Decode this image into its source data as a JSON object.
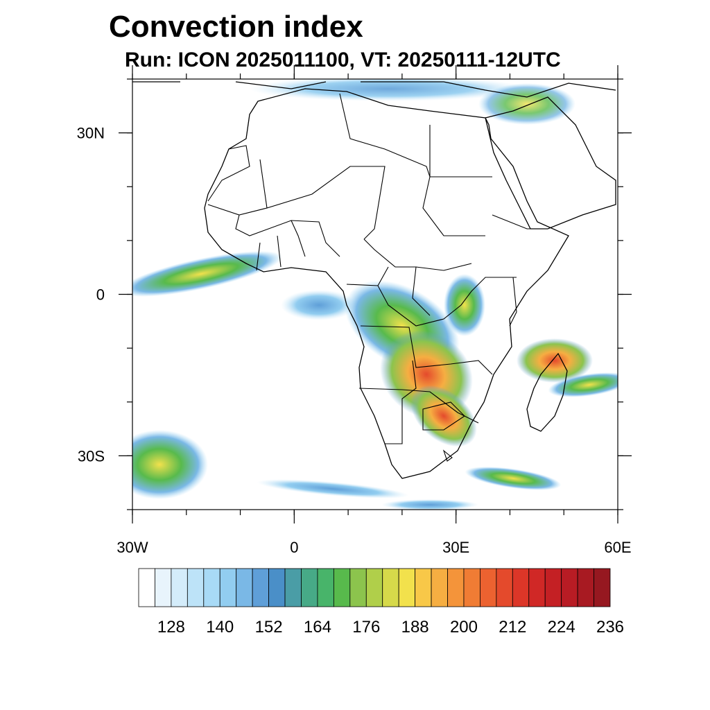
{
  "title": "Convection index",
  "subtitle": "Run: ICON 2025011100,  VT: 20250111-12UTC",
  "map": {
    "lon_range": [
      -30,
      60
    ],
    "lat_range": [
      -40,
      40
    ],
    "lon_ticks": [
      {
        "value": -30,
        "label": "30W"
      },
      {
        "value": 0,
        "label": "0"
      },
      {
        "value": 30,
        "label": "30E"
      },
      {
        "value": 60,
        "label": "60E"
      }
    ],
    "lat_ticks": [
      {
        "value": 30,
        "label": "30N"
      },
      {
        "value": 0,
        "label": "0"
      },
      {
        "value": -30,
        "label": "30S"
      }
    ],
    "minor_lon_step": 10,
    "minor_lat_step": 10
  },
  "colorbar": {
    "colors": [
      "#ffffff",
      "#e8f4fc",
      "#d4ecfa",
      "#bde3f8",
      "#a8daf6",
      "#92cdf0",
      "#7ab8e6",
      "#5f9fd8",
      "#4a8fc8",
      "#4a9da6",
      "#47aa87",
      "#48b46a",
      "#58ba4c",
      "#8cc44d",
      "#b0cf4a",
      "#d6d94a",
      "#f2e14c",
      "#f8c848",
      "#f6ae42",
      "#f4943a",
      "#f07c34",
      "#ec6230",
      "#e44a2c",
      "#dc3628",
      "#d02826",
      "#c42024",
      "#b81c24",
      "#a81a22",
      "#961820"
    ],
    "labels": [
      "128",
      "140",
      "152",
      "164",
      "176",
      "188",
      "200",
      "212",
      "224",
      "236"
    ]
  }
}
